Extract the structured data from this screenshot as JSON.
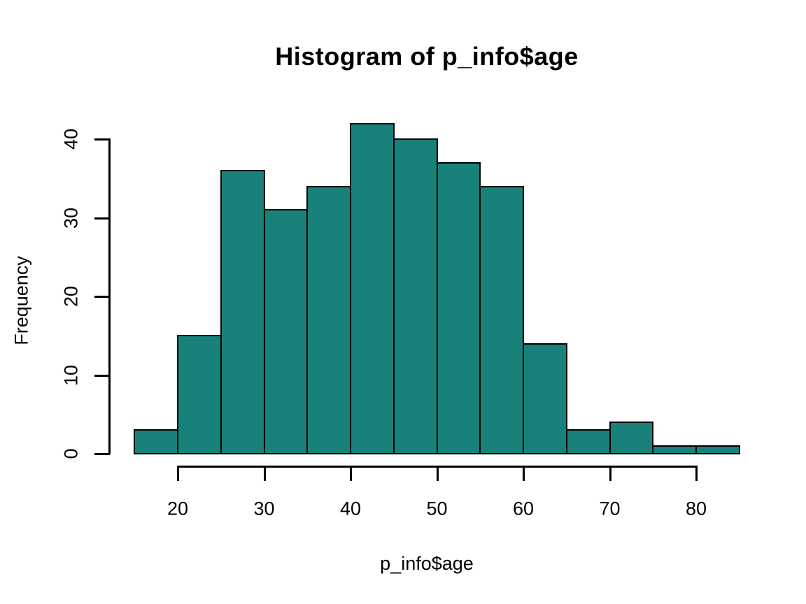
{
  "figure": {
    "background": "#FFFFFF",
    "text_color": "#000000"
  },
  "chart_data": {
    "type": "bar",
    "subtype": "histogram",
    "title": "Histogram of p_info$age",
    "xlabel": "p_info$age",
    "ylabel": "Frequency",
    "bin_width": 5,
    "bin_edges": [
      15,
      20,
      25,
      30,
      35,
      40,
      45,
      50,
      55,
      60,
      65,
      70,
      75,
      80,
      85
    ],
    "counts": [
      3,
      15,
      36,
      31,
      34,
      42,
      40,
      37,
      34,
      14,
      3,
      4,
      1,
      1
    ],
    "x_ticks": [
      20,
      30,
      40,
      50,
      60,
      70,
      80
    ],
    "y_ticks": [
      0,
      10,
      20,
      30,
      40
    ],
    "xlim": [
      15,
      85
    ],
    "ylim": [
      0,
      42
    ],
    "grid": false,
    "legend": "none",
    "bar_fill": "#17817A",
    "bar_border": "#000000"
  }
}
